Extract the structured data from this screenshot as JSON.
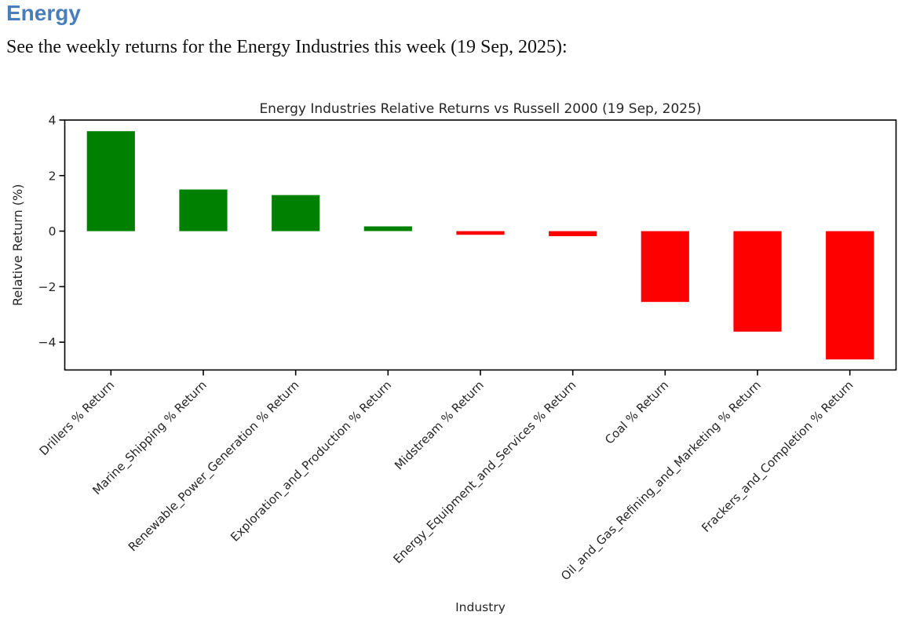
{
  "document": {
    "heading": "Energy",
    "heading_color": "#4a7ebb",
    "intro": "See the weekly returns for the Energy Industries this week (19 Sep, 2025):"
  },
  "chart_data": {
    "type": "bar",
    "title": "Energy Industries Relative Returns vs Russell 2000 (19 Sep, 2025)",
    "xlabel": "Industry",
    "ylabel": "Relative Return (%)",
    "categories": [
      "Drillers % Return",
      "Marine_Shipping % Return",
      "Renewable_Power_Generation % Return",
      "Exploration_and_Production % Return",
      "Midstream % Return",
      "Energy_Equipment_and_Services % Return",
      "Coal % Return",
      "Oil_and_Gas_Refining_and_Marketing % Return",
      "Frackers_and_Completion % Return"
    ],
    "values": [
      3.6,
      1.5,
      1.3,
      0.17,
      -0.13,
      -0.18,
      -2.55,
      -3.62,
      -4.62
    ],
    "positive_color": "#008000",
    "negative_color": "#ff0000",
    "axis_color": "#000000",
    "yticks": [
      4,
      2,
      0,
      -2,
      -4
    ],
    "ylim": [
      -5,
      4
    ],
    "grid": false,
    "legend": "none",
    "bar_width_fraction": 0.52,
    "x_label_rotation_deg": 45
  }
}
